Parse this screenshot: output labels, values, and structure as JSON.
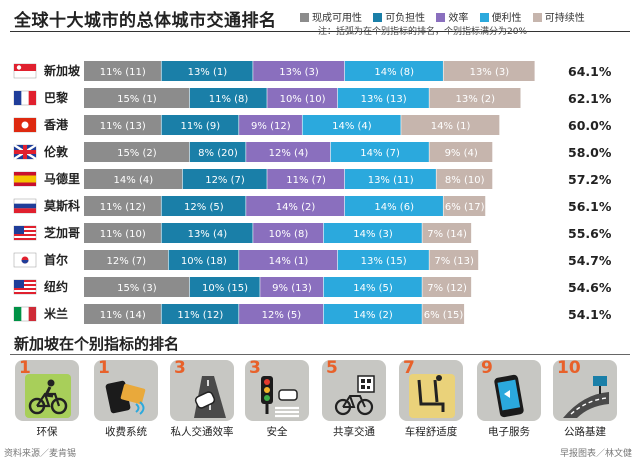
{
  "title": "全球十大城市的总体城市交通排名",
  "note": "注：括弧为在个别指标的排名，个别指标满分为20%",
  "chart_data": {
    "type": "bar",
    "stacked": true,
    "orientation": "horizontal",
    "categories": [
      "新加坡",
      "巴黎",
      "香港",
      "伦敦",
      "马德里",
      "莫斯科",
      "芝加哥",
      "首尔",
      "纽约",
      "米兰"
    ],
    "totals": [
      "64.1%",
      "62.1%",
      "60.0%",
      "58.0%",
      "57.2%",
      "56.1%",
      "55.6%",
      "54.7%",
      "54.6%",
      "54.1%"
    ],
    "series": [
      {
        "name": "现成可用性",
        "color": "#8c8c8c",
        "values": [
          11,
          15,
          11,
          15,
          14,
          11,
          11,
          12,
          15,
          11
        ],
        "ranks": [
          11,
          1,
          13,
          2,
          4,
          12,
          10,
          7,
          3,
          14
        ]
      },
      {
        "name": "可负担性",
        "color": "#1a7fa8",
        "values": [
          13,
          11,
          11,
          8,
          12,
          12,
          13,
          10,
          10,
          11
        ],
        "ranks": [
          1,
          8,
          9,
          20,
          7,
          5,
          4,
          18,
          15,
          12
        ]
      },
      {
        "name": "效率",
        "color": "#8a6fbe",
        "values": [
          13,
          10,
          9,
          12,
          11,
          14,
          10,
          14,
          9,
          12
        ],
        "ranks": [
          3,
          10,
          12,
          4,
          7,
          2,
          8,
          1,
          13,
          5
        ]
      },
      {
        "name": "便利性",
        "color": "#2ba9dd",
        "values": [
          14,
          13,
          14,
          14,
          13,
          14,
          14,
          13,
          14,
          14
        ],
        "ranks": [
          8,
          13,
          4,
          7,
          11,
          6,
          3,
          15,
          5,
          2
        ]
      },
      {
        "name": "可持续性",
        "color": "#c6b5ad",
        "values": [
          13,
          13,
          14,
          9,
          8,
          6,
          7,
          7,
          7,
          6
        ],
        "ranks": [
          3,
          2,
          1,
          4,
          10,
          17,
          14,
          13,
          12,
          15
        ]
      }
    ]
  },
  "flags": [
    "sg",
    "fr",
    "hk",
    "gb",
    "es",
    "ru",
    "us",
    "kr",
    "us",
    "it"
  ],
  "indicator_section": {
    "title": "新加坡在个别指标的排名",
    "items": [
      {
        "rank": "1",
        "label": "环保",
        "icon": "cyclist-icon"
      },
      {
        "rank": "1",
        "label": "收费系统",
        "icon": "payment-card-icon"
      },
      {
        "rank": "3",
        "label": "私人交通效率",
        "icon": "car-road-icon"
      },
      {
        "rank": "3",
        "label": "安全",
        "icon": "traffic-light-icon"
      },
      {
        "rank": "5",
        "label": "共享交通",
        "icon": "bicycle-qr-icon"
      },
      {
        "rank": "7",
        "label": "车程舒适度",
        "icon": "seat-icon"
      },
      {
        "rank": "9",
        "label": "电子服务",
        "icon": "smartphone-icon"
      },
      {
        "rank": "10",
        "label": "公路基建",
        "icon": "highway-icon"
      }
    ]
  },
  "source": "资料来源／麦肯锡",
  "credit": "早报图表／林文健"
}
